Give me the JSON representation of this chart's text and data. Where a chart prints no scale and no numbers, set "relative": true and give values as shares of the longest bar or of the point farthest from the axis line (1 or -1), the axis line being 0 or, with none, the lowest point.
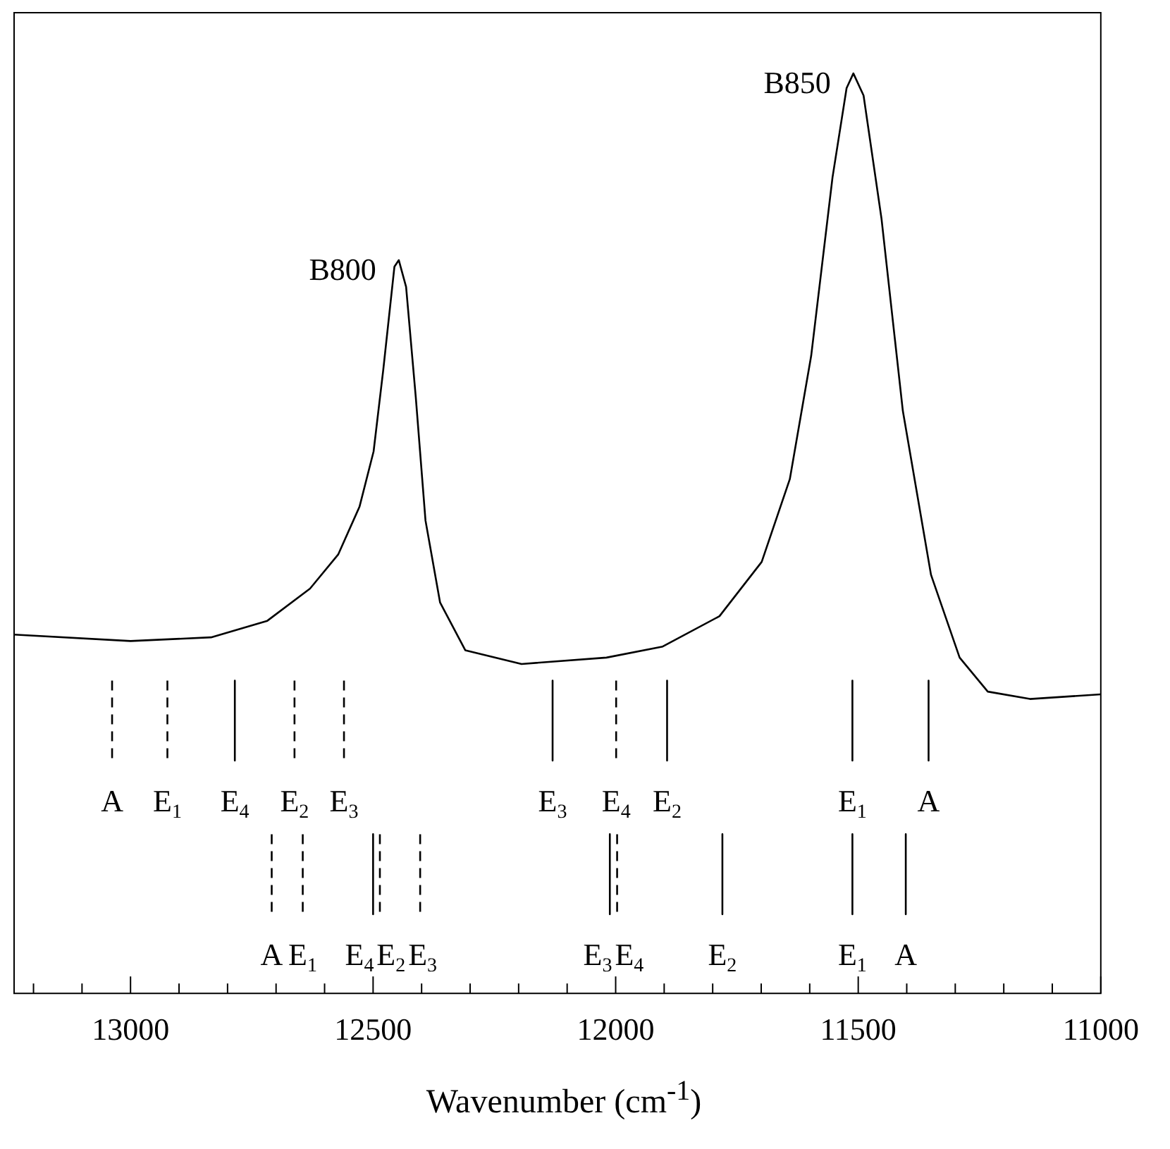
{
  "chart_data": {
    "type": "line",
    "relative": true,
    "xlabel": "Wavenumber (cm$^{-1}$)",
    "xlim": [
      13240,
      11000
    ],
    "xticks": [
      {
        "value": 13200,
        "label": null
      },
      {
        "value": 13100,
        "label": null
      },
      13000,
      {
        "value": 12900,
        "label": null
      },
      {
        "value": 12800,
        "label": null
      },
      {
        "value": 12700,
        "label": null
      },
      {
        "value": 12600,
        "label": null
      },
      12500,
      {
        "value": 12400,
        "label": null
      },
      {
        "value": 12300,
        "label": null
      },
      {
        "value": 12200,
        "label": null
      },
      {
        "value": 12100,
        "label": null
      },
      12000,
      {
        "value": 11900,
        "label": null
      },
      {
        "value": 11800,
        "label": null
      },
      {
        "value": 11700,
        "label": null
      },
      {
        "value": 11600,
        "label": null
      },
      11500,
      {
        "value": 11400,
        "label": null
      },
      {
        "value": 11300,
        "label": null
      },
      {
        "value": 11200,
        "label": null
      },
      {
        "value": 11100,
        "label": null
      },
      11000
    ],
    "grid": false,
    "legend": false,
    "marker": "none",
    "line_style": "solid",
    "series": [
      {
        "color": "#000000",
        "x": [
          13240,
          13000,
          12834,
          12718,
          12630,
          12572,
          12528,
          12499,
          12479,
          12456,
          12447,
          12432,
          12412,
          12392,
          12362,
          12310,
          12194,
          12019,
          11903,
          11786,
          11699,
          11641,
          11597,
          11553,
          11524,
          11510,
          11489,
          11452,
          11408,
          11350,
          11291,
          11233,
          11146,
          11058,
          11000
        ],
        "values": [
          0.39,
          0.383,
          0.387,
          0.405,
          0.44,
          0.477,
          0.529,
          0.589,
          0.678,
          0.79,
          0.797,
          0.768,
          0.648,
          0.514,
          0.425,
          0.373,
          0.358,
          0.365,
          0.377,
          0.41,
          0.469,
          0.559,
          0.693,
          0.887,
          0.984,
          1,
          0.976,
          0.842,
          0.633,
          0.455,
          0.365,
          0.328,
          0.32,
          0.323,
          0.325
        ]
      },
      {
        "name": "A",
        "color": "#000000",
        "line_style": "dashed",
        "x": [
          13038,
          13038
        ],
        "values": [
          0.34,
          0.253
        ]
      },
      {
        "name": "E$_{1}$",
        "color": "#000000",
        "line_style": "dashed",
        "x": [
          12924,
          12924
        ],
        "values": [
          0.34,
          0.253
        ]
      },
      {
        "name": "E$_{4}$",
        "color": "#000000",
        "line_style": "solid",
        "x": [
          12785,
          12785
        ],
        "values": [
          0.34,
          0.253
        ]
      },
      {
        "name": "E$_{2}$",
        "color": "#000000",
        "line_style": "dashed",
        "x": [
          12662,
          12662
        ],
        "values": [
          0.34,
          0.253
        ]
      },
      {
        "name": "E$_{3}$",
        "color": "#000000",
        "line_style": "dashed",
        "x": [
          12560,
          12560
        ],
        "values": [
          0.34,
          0.253
        ]
      },
      {
        "name": "E$_{3}$",
        "color": "#000000",
        "line_style": "solid",
        "x": [
          12130,
          12130
        ],
        "values": [
          0.34,
          0.253
        ]
      },
      {
        "name": "E$_{4}$",
        "color": "#000000",
        "line_style": "dashed",
        "x": [
          11999,
          11999
        ],
        "values": [
          0.34,
          0.253
        ]
      },
      {
        "name": "E$_{2}$",
        "color": "#000000",
        "line_style": "solid",
        "x": [
          11894,
          11894
        ],
        "values": [
          0.34,
          0.253
        ]
      },
      {
        "name": "E$_{1}$",
        "color": "#000000",
        "line_style": "solid",
        "x": [
          11512,
          11512
        ],
        "values": [
          0.34,
          0.253
        ]
      },
      {
        "name": "A",
        "color": "#000000",
        "line_style": "solid",
        "x": [
          11355,
          11355
        ],
        "values": [
          0.34,
          0.253
        ]
      },
      {
        "name": "A",
        "color": "#000000",
        "line_style": "dashed",
        "x": [
          12709,
          12709
        ],
        "values": [
          0.173,
          0.086
        ]
      },
      {
        "name": "E$_{1}$",
        "color": "#000000",
        "line_style": "dashed",
        "x": [
          12645,
          12645
        ],
        "values": [
          0.173,
          0.086
        ]
      },
      {
        "name": "E$_{4}$",
        "color": "#000000",
        "line_style": "solid",
        "x": [
          12500,
          12500
        ],
        "values": [
          0.173,
          0.086
        ]
      },
      {
        "name": "E$_{2}$",
        "color": "#000000",
        "line_style": "dashed",
        "x": [
          12486,
          12486
        ],
        "values": [
          0.173,
          0.086
        ]
      },
      {
        "name": "E$_{3}$",
        "color": "#000000",
        "line_style": "dashed",
        "x": [
          12403,
          12403
        ],
        "values": [
          0.173,
          0.086
        ]
      },
      {
        "name": "E$_{3}$",
        "color": "#000000",
        "line_style": "solid",
        "x": [
          12012,
          12012
        ],
        "values": [
          0.173,
          0.086
        ]
      },
      {
        "name": "E$_{4}$",
        "color": "#000000",
        "line_style": "dashed",
        "x": [
          11997,
          11997
        ],
        "values": [
          0.173,
          0.086
        ]
      },
      {
        "name": "E$_{2}$",
        "color": "#000000",
        "line_style": "solid",
        "x": [
          11780,
          11780
        ],
        "values": [
          0.173,
          0.086
        ]
      },
      {
        "name": "E$_{1}$",
        "color": "#000000",
        "line_style": "solid",
        "x": [
          11512,
          11512
        ],
        "values": [
          0.173,
          0.086
        ]
      },
      {
        "name": "A",
        "color": "#000000",
        "line_style": "solid",
        "x": [
          11402,
          11402
        ],
        "values": [
          0.173,
          0.086
        ]
      }
    ],
    "annotations": [
      {
        "text": "B800",
        "x": 12447,
        "y": 0.797
      },
      {
        "text": "B850",
        "x": 11510,
        "y": 1
      }
    ]
  }
}
